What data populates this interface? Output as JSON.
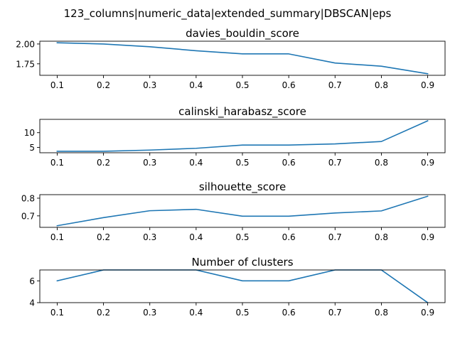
{
  "figure": {
    "suptitle": "123_columns|numeric_data|extended_summary|DBSCAN|eps"
  },
  "chart_data": [
    {
      "type": "line",
      "title": "davies_bouldin_score",
      "xlabel": "",
      "ylabel": "",
      "x": [
        0.1,
        0.2,
        0.3,
        0.4,
        0.5,
        0.6,
        0.7,
        0.8,
        0.9
      ],
      "xticks": [
        "0.1",
        "0.2",
        "0.3",
        "0.4",
        "0.5",
        "0.6",
        "0.7",
        "0.8",
        "0.9"
      ],
      "series": [
        {
          "values": [
            2.015,
            2.0,
            1.965,
            1.915,
            1.875,
            1.875,
            1.76,
            1.72,
            1.625
          ]
        }
      ],
      "ylim": [
        1.605,
        2.035
      ],
      "yticks": [
        1.75,
        2.0
      ],
      "ytick_labels": [
        "1.75",
        "2.00"
      ],
      "grid": false,
      "color": "#1f77b4"
    },
    {
      "type": "line",
      "title": "calinski_harabasz_score",
      "xlabel": "",
      "ylabel": "",
      "x": [
        0.1,
        0.2,
        0.3,
        0.4,
        0.5,
        0.6,
        0.7,
        0.8,
        0.9
      ],
      "xticks": [
        "0.1",
        "0.2",
        "0.3",
        "0.4",
        "0.5",
        "0.6",
        "0.7",
        "0.8",
        "0.9"
      ],
      "series": [
        {
          "values": [
            3.7,
            3.7,
            4.1,
            4.7,
            5.8,
            5.8,
            6.2,
            7.0,
            14.0
          ]
        }
      ],
      "ylim": [
        3.2,
        14.5
      ],
      "yticks": [
        5,
        10
      ],
      "ytick_labels": [
        "5",
        "10"
      ],
      "grid": false,
      "color": "#1f77b4"
    },
    {
      "type": "line",
      "title": "silhouette_score",
      "xlabel": "",
      "ylabel": "",
      "x": [
        0.1,
        0.2,
        0.3,
        0.4,
        0.5,
        0.6,
        0.7,
        0.8,
        0.9
      ],
      "xticks": [
        "0.1",
        "0.2",
        "0.3",
        "0.4",
        "0.5",
        "0.6",
        "0.7",
        "0.8",
        "0.9"
      ],
      "series": [
        {
          "values": [
            0.644,
            0.69,
            0.729,
            0.737,
            0.698,
            0.698,
            0.716,
            0.728,
            0.811
          ]
        }
      ],
      "ylim": [
        0.635,
        0.82
      ],
      "yticks": [
        0.7,
        0.8
      ],
      "ytick_labels": [
        "0.7",
        "0.8"
      ],
      "grid": false,
      "color": "#1f77b4"
    },
    {
      "type": "line",
      "title": "Number of clusters",
      "xlabel": "",
      "ylabel": "",
      "x": [
        0.1,
        0.2,
        0.3,
        0.4,
        0.5,
        0.6,
        0.7,
        0.8,
        0.9
      ],
      "xticks": [
        "0.1",
        "0.2",
        "0.3",
        "0.4",
        "0.5",
        "0.6",
        "0.7",
        "0.8",
        "0.9"
      ],
      "series": [
        {
          "values": [
            6,
            7,
            7,
            7,
            6,
            6,
            7,
            7,
            4
          ]
        }
      ],
      "ylim": [
        4,
        7
      ],
      "yticks": [
        4,
        6
      ],
      "ytick_labels": [
        "4",
        "6"
      ],
      "grid": false,
      "color": "#1f77b4"
    }
  ]
}
